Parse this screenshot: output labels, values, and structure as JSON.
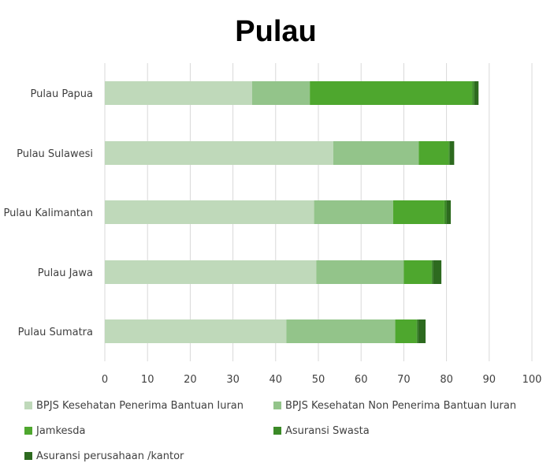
{
  "chart_data": {
    "type": "bar",
    "orientation": "horizontal",
    "stacked": true,
    "title": "Pulau",
    "categories": [
      "Pulau Papua",
      "Pulau Sulawesi",
      "Pulau Kalimantan",
      "Pulau Jawa",
      "Pulau Sumatra"
    ],
    "series": [
      {
        "name": "BPJS Kesehatan Penerima Bantuan Iuran",
        "color": "#bfd9ba",
        "values": [
          34.5,
          53.5,
          49,
          49.5,
          42.5
        ]
      },
      {
        "name": "BPJS Kesehatan Non Penerima Bantuan Iuran",
        "color": "#93c48a",
        "values": [
          13.5,
          20,
          18.5,
          20.5,
          25.5
        ]
      },
      {
        "name": "Jamkesda",
        "color": "#4ea72e",
        "values": [
          38,
          7,
          12,
          6.5,
          5
        ]
      },
      {
        "name": "Asuransi Swasta",
        "color": "#3b8a27",
        "values": [
          0.5,
          0.3,
          0.5,
          0.3,
          0.3
        ]
      },
      {
        "name": "Asuransi perusahaan /kantor",
        "color": "#2d6a1f",
        "values": [
          1,
          1,
          1,
          2,
          1.8
        ]
      }
    ],
    "xlim": [
      0,
      100
    ],
    "xticks": [
      0,
      10,
      20,
      30,
      40,
      50,
      60,
      70,
      80,
      90,
      100
    ],
    "grid": true,
    "legend_position": "bottom"
  }
}
